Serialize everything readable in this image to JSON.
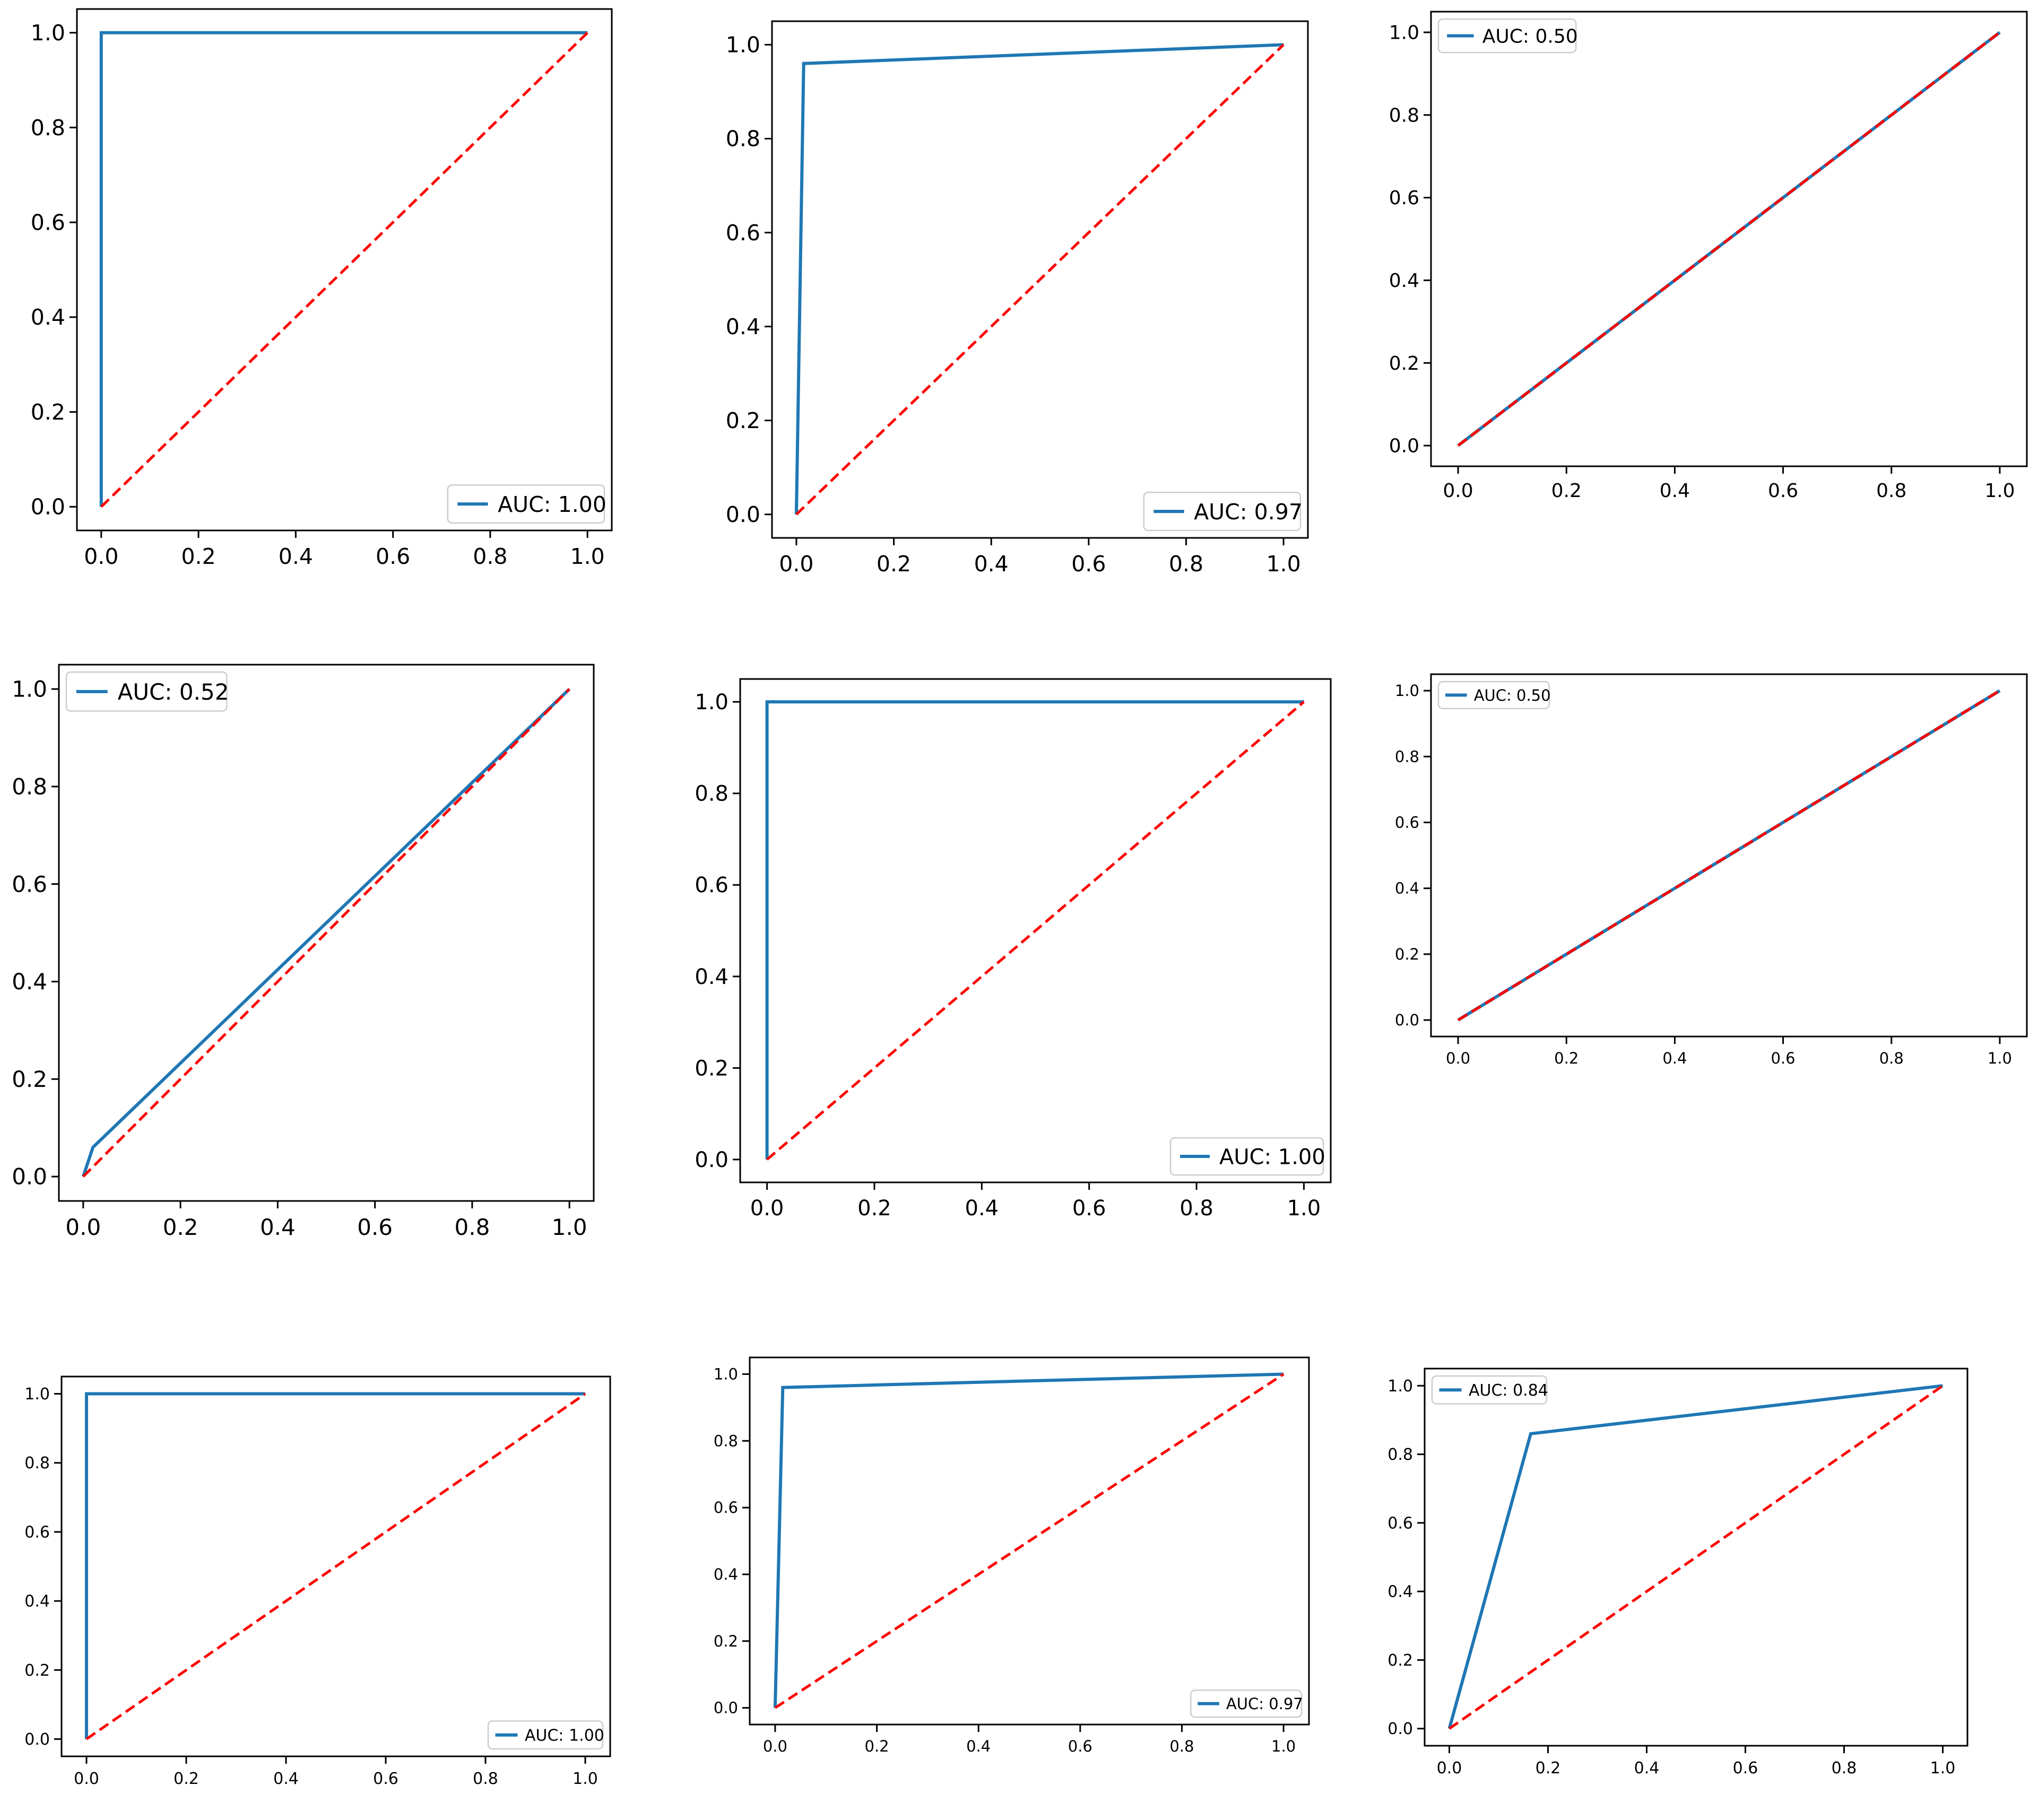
{
  "style": {
    "curve_color": "#1f77b4",
    "diagonal_color": "#ff0000",
    "axes_color": "#000000",
    "legend_border_color": "#cccccc"
  },
  "chart_data": [
    {
      "type": "line",
      "panel": "row1-col1",
      "xlim": [
        0,
        1
      ],
      "ylim": [
        0,
        1
      ],
      "xticks": [
        "0.0",
        "0.2",
        "0.4",
        "0.6",
        "0.8",
        "1.0"
      ],
      "yticks": [
        "0.0",
        "0.2",
        "0.4",
        "0.6",
        "0.8",
        "1.0"
      ],
      "legend": "lower-right",
      "grid": false,
      "series": [
        {
          "name": "AUC: 1.00",
          "style": "solid",
          "x": [
            0,
            0,
            1
          ],
          "y": [
            0,
            1,
            1
          ]
        },
        {
          "style": "dashed",
          "x": [
            0,
            1
          ],
          "y": [
            0,
            1
          ]
        }
      ]
    },
    {
      "type": "line",
      "panel": "row1-col2",
      "xlim": [
        0,
        1
      ],
      "ylim": [
        0,
        1
      ],
      "xticks": [
        "0.0",
        "0.2",
        "0.4",
        "0.6",
        "0.8",
        "1.0"
      ],
      "yticks": [
        "0.0",
        "0.2",
        "0.4",
        "0.6",
        "0.8",
        "1.0"
      ],
      "legend": "lower-right",
      "grid": false,
      "series": [
        {
          "name": "AUC: 0.97",
          "style": "solid",
          "x": [
            0,
            0.015,
            1
          ],
          "y": [
            0,
            0.96,
            1
          ]
        },
        {
          "style": "dashed",
          "x": [
            0,
            1
          ],
          "y": [
            0,
            1
          ]
        }
      ]
    },
    {
      "type": "line",
      "panel": "row1-col3",
      "xlim": [
        0,
        1
      ],
      "ylim": [
        0,
        1
      ],
      "xticks": [
        "0.0",
        "0.2",
        "0.4",
        "0.6",
        "0.8",
        "1.0"
      ],
      "yticks": [
        "0.0",
        "0.2",
        "0.4",
        "0.6",
        "0.8",
        "1.0"
      ],
      "legend": "upper-left",
      "grid": false,
      "series": [
        {
          "name": "AUC: 0.50",
          "style": "solid",
          "x": [
            0,
            1
          ],
          "y": [
            0,
            1
          ]
        },
        {
          "style": "dashed",
          "x": [
            0,
            1
          ],
          "y": [
            0,
            1
          ]
        }
      ]
    },
    {
      "type": "line",
      "panel": "row2-col1",
      "xlim": [
        0,
        1
      ],
      "ylim": [
        0,
        1
      ],
      "xticks": [
        "0.0",
        "0.2",
        "0.4",
        "0.6",
        "0.8",
        "1.0"
      ],
      "yticks": [
        "0.0",
        "0.2",
        "0.4",
        "0.6",
        "0.8",
        "1.0"
      ],
      "legend": "upper-left",
      "grid": false,
      "series": [
        {
          "name": "AUC: 0.52",
          "style": "solid",
          "x": [
            0,
            0.02,
            1
          ],
          "y": [
            0,
            0.06,
            1
          ]
        },
        {
          "style": "dashed",
          "x": [
            0,
            1
          ],
          "y": [
            0,
            1
          ]
        }
      ]
    },
    {
      "type": "line",
      "panel": "row2-col2",
      "xlim": [
        0,
        1
      ],
      "ylim": [
        0,
        1
      ],
      "xticks": [
        "0.0",
        "0.2",
        "0.4",
        "0.6",
        "0.8",
        "1.0"
      ],
      "yticks": [
        "0.0",
        "0.2",
        "0.4",
        "0.6",
        "0.8",
        "1.0"
      ],
      "legend": "lower-right",
      "grid": false,
      "series": [
        {
          "name": "AUC: 1.00",
          "style": "solid",
          "x": [
            0,
            0,
            1
          ],
          "y": [
            0,
            1,
            1
          ]
        },
        {
          "style": "dashed",
          "x": [
            0,
            1
          ],
          "y": [
            0,
            1
          ]
        }
      ]
    },
    {
      "type": "line",
      "panel": "row2-col3",
      "xlim": [
        0,
        1
      ],
      "ylim": [
        0,
        1
      ],
      "xticks": [
        "0.0",
        "0.2",
        "0.4",
        "0.6",
        "0.8",
        "1.0"
      ],
      "yticks": [
        "0.0",
        "0.2",
        "0.4",
        "0.6",
        "0.8",
        "1.0"
      ],
      "legend": "upper-left",
      "grid": false,
      "series": [
        {
          "name": "AUC: 0.50",
          "style": "solid",
          "x": [
            0,
            1
          ],
          "y": [
            0,
            1
          ]
        },
        {
          "style": "dashed",
          "x": [
            0,
            1
          ],
          "y": [
            0,
            1
          ]
        }
      ]
    },
    {
      "type": "line",
      "panel": "row3-col1",
      "xlim": [
        0,
        1
      ],
      "ylim": [
        0,
        1
      ],
      "xticks": [
        "0.0",
        "0.2",
        "0.4",
        "0.6",
        "0.8",
        "1.0"
      ],
      "yticks": [
        "0.0",
        "0.2",
        "0.4",
        "0.6",
        "0.8",
        "1.0"
      ],
      "legend": "lower-right",
      "grid": false,
      "series": [
        {
          "name": "AUC: 1.00",
          "style": "solid",
          "x": [
            0,
            0,
            1
          ],
          "y": [
            0,
            1,
            1
          ]
        },
        {
          "style": "dashed",
          "x": [
            0,
            1
          ],
          "y": [
            0,
            1
          ]
        }
      ]
    },
    {
      "type": "line",
      "panel": "row3-col2",
      "xlim": [
        0,
        1
      ],
      "ylim": [
        0,
        1
      ],
      "xticks": [
        "0.0",
        "0.2",
        "0.4",
        "0.6",
        "0.8",
        "1.0"
      ],
      "yticks": [
        "0.0",
        "0.2",
        "0.4",
        "0.6",
        "0.8",
        "1.0"
      ],
      "legend": "lower-right",
      "grid": false,
      "series": [
        {
          "name": "AUC: 0.97",
          "style": "solid",
          "x": [
            0,
            0.015,
            1
          ],
          "y": [
            0,
            0.96,
            1
          ]
        },
        {
          "style": "dashed",
          "x": [
            0,
            1
          ],
          "y": [
            0,
            1
          ]
        }
      ]
    },
    {
      "type": "line",
      "panel": "row3-col3",
      "xlim": [
        0,
        1
      ],
      "ylim": [
        0,
        1
      ],
      "xticks": [
        "0.0",
        "0.2",
        "0.4",
        "0.6",
        "0.8",
        "1.0"
      ],
      "yticks": [
        "0.0",
        "0.2",
        "0.4",
        "0.6",
        "0.8",
        "1.0"
      ],
      "legend": "upper-left",
      "grid": false,
      "series": [
        {
          "name": "AUC: 0.84",
          "style": "solid",
          "x": [
            0,
            0.165,
            1
          ],
          "y": [
            0,
            0.86,
            1
          ]
        },
        {
          "style": "dashed",
          "x": [
            0,
            1
          ],
          "y": [
            0,
            1
          ]
        }
      ]
    }
  ]
}
